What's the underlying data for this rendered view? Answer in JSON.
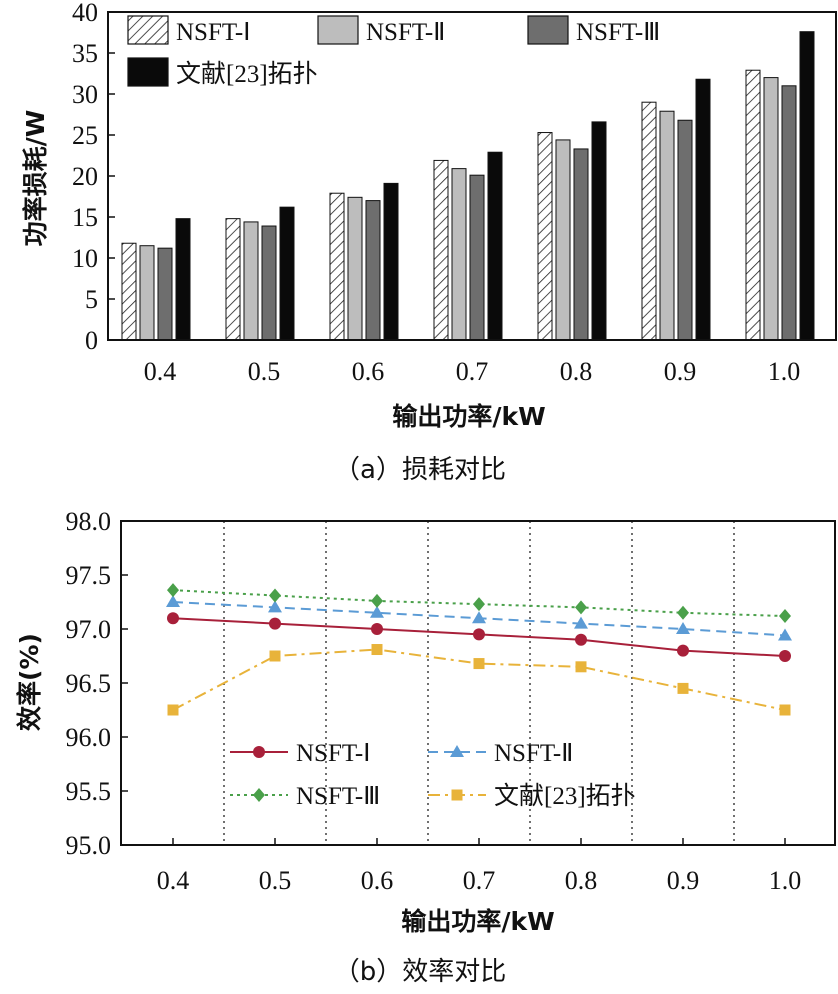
{
  "chart_data": [
    {
      "type": "bar",
      "title": "",
      "caption": "（a）损耗对比",
      "xlabel": "输出功率/kW",
      "ylabel": "功率损耗/W",
      "ylim": [
        0,
        40
      ],
      "yticks": [
        "0",
        "5",
        "10",
        "15",
        "20",
        "25",
        "30",
        "35",
        "40"
      ],
      "categories": [
        "0.4",
        "0.5",
        "0.6",
        "0.7",
        "0.8",
        "0.9",
        "1.0"
      ],
      "legend_position": "top",
      "series": [
        {
          "name": "NSFT-Ⅰ",
          "pattern": "hatch",
          "color": "#ffffff",
          "values": [
            11.8,
            14.8,
            17.9,
            21.9,
            25.3,
            29.0,
            32.9
          ]
        },
        {
          "name": "NSFT-Ⅱ",
          "pattern": "solid",
          "color": "#bdbdbd",
          "values": [
            11.5,
            14.4,
            17.4,
            20.9,
            24.4,
            27.9,
            32.0
          ]
        },
        {
          "name": "NSFT-Ⅲ",
          "pattern": "solid",
          "color": "#6e6e6e",
          "values": [
            11.2,
            13.9,
            17.0,
            20.1,
            23.3,
            26.8,
            31.0
          ]
        },
        {
          "name": "文献[23]拓扑",
          "pattern": "solid",
          "color": "#0a0a0a",
          "values": [
            14.8,
            16.2,
            19.1,
            22.9,
            26.6,
            31.8,
            37.6
          ]
        }
      ]
    },
    {
      "type": "line",
      "title": "",
      "caption": "（b）效率对比",
      "xlabel": "输出功率/kW",
      "ylabel": "效率(%)",
      "ylim": [
        95.0,
        98.0
      ],
      "yticks": [
        "95.0",
        "95.5",
        "96.0",
        "96.5",
        "97.0",
        "97.5",
        "98.0"
      ],
      "x": [
        "0.4",
        "0.5",
        "0.6",
        "0.7",
        "0.8",
        "0.9",
        "1.0"
      ],
      "grid": "vertical-dotted",
      "legend_position": "lower-center",
      "series": [
        {
          "name": "NSFT-Ⅰ",
          "color": "#a8203a",
          "marker": "circle",
          "dash": "solid",
          "values": [
            97.1,
            97.05,
            97.0,
            96.95,
            96.9,
            96.8,
            96.75
          ]
        },
        {
          "name": "NSFT-Ⅱ",
          "color": "#5b9bd5",
          "marker": "triangle",
          "dash": "dashed",
          "values": [
            97.25,
            97.2,
            97.15,
            97.1,
            97.05,
            97.0,
            96.94
          ]
        },
        {
          "name": "NSFT-Ⅲ",
          "color": "#4aa04a",
          "marker": "diamond",
          "dash": "dotted",
          "values": [
            97.36,
            97.31,
            97.26,
            97.23,
            97.2,
            97.15,
            97.12
          ]
        },
        {
          "name": "文献[23]拓扑",
          "color": "#e8b33a",
          "marker": "square",
          "dash": "dashdot",
          "values": [
            96.25,
            96.75,
            96.81,
            96.68,
            96.65,
            96.45,
            96.25
          ]
        }
      ]
    }
  ]
}
